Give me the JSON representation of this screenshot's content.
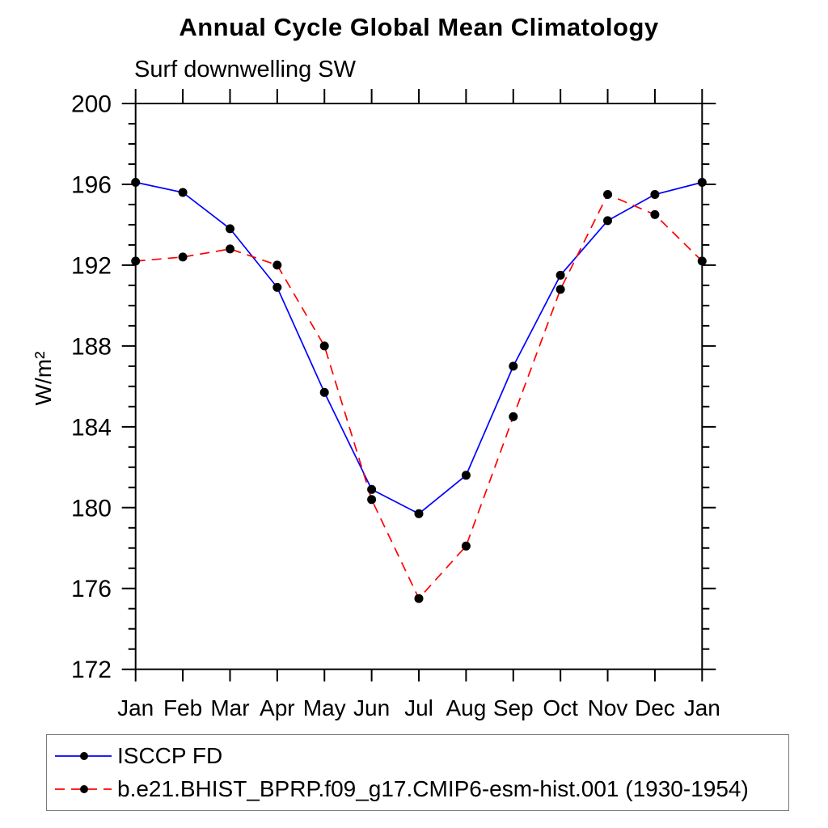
{
  "chart_data": {
    "type": "line",
    "title": "Annual Cycle Global Mean Climatology",
    "subtitle": "Surf downwelling SW",
    "xlabel": "",
    "ylabel": "W/m²",
    "categories": [
      "Jan",
      "Feb",
      "Mar",
      "Apr",
      "May",
      "Jun",
      "Jul",
      "Aug",
      "Sep",
      "Oct",
      "Nov",
      "Dec",
      "Jan"
    ],
    "ylim": [
      172,
      200
    ],
    "y_major_step": 4,
    "y_minor_step": 1,
    "grid": false,
    "legend_position": "bottom",
    "axis_color": "#000000",
    "series": [
      {
        "name": "ISCCP FD",
        "color": "#0000ff",
        "style": "solid",
        "marker": "filled-circle",
        "marker_color": "#000000",
        "values": [
          196.1,
          195.6,
          193.8,
          190.9,
          185.7,
          180.9,
          179.7,
          181.6,
          187.0,
          191.5,
          194.2,
          195.5,
          196.1
        ]
      },
      {
        "name": "b.e21.BHIST_BPRP.f09_g17.CMIP6-esm-hist.001 (1930-1954)",
        "color": "#ff0000",
        "style": "dashed",
        "marker": "filled-circle",
        "marker_color": "#000000",
        "values": [
          192.2,
          192.4,
          192.8,
          192.0,
          188.0,
          180.4,
          175.5,
          178.1,
          184.5,
          190.8,
          195.5,
          194.5,
          192.2
        ]
      }
    ]
  }
}
